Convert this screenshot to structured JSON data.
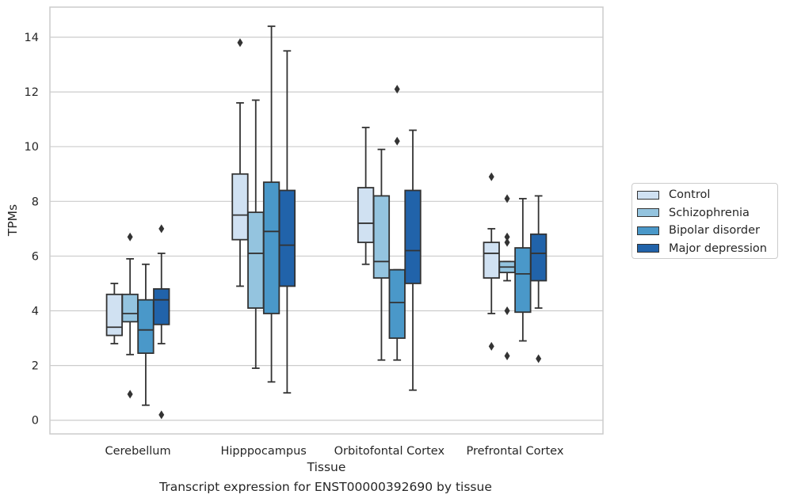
{
  "caption": "Transcript expression for ENST00000392690 by tissue",
  "chart_data": {
    "type": "box",
    "xlabel": "Tissue",
    "ylabel": "TPMs",
    "ylim": [
      -0.5,
      15.1
    ],
    "yticks": [
      0,
      2,
      4,
      6,
      8,
      10,
      12,
      14
    ],
    "grid": true,
    "legend_position": "right",
    "categories": [
      "Cerebellum",
      "Hipppocampus",
      "Orbitofontal Cortex",
      "Prefrontal Cortex"
    ],
    "series": [
      {
        "name": "Control",
        "color": "#d0e1f2",
        "boxes": [
          {
            "whislo": 2.8,
            "q1": 3.1,
            "med": 3.4,
            "q3": 4.6,
            "whishi": 5.0,
            "fliers": []
          },
          {
            "whislo": 4.9,
            "q1": 6.6,
            "med": 7.5,
            "q3": 9.0,
            "whishi": 11.6,
            "fliers": [
              13.8
            ]
          },
          {
            "whislo": 5.7,
            "q1": 6.5,
            "med": 7.2,
            "q3": 8.5,
            "whishi": 10.7,
            "fliers": []
          },
          {
            "whislo": 3.9,
            "q1": 5.2,
            "med": 6.1,
            "q3": 6.5,
            "whishi": 7.0,
            "fliers": [
              8.9,
              2.7
            ]
          }
        ]
      },
      {
        "name": "Schizophrenia",
        "color": "#94c4df",
        "boxes": [
          {
            "whislo": 2.4,
            "q1": 3.6,
            "med": 3.9,
            "q3": 4.6,
            "whishi": 5.9,
            "fliers": [
              6.7,
              0.95
            ]
          },
          {
            "whislo": 1.9,
            "q1": 4.1,
            "med": 6.1,
            "q3": 7.6,
            "whishi": 11.7,
            "fliers": []
          },
          {
            "whislo": 2.2,
            "q1": 5.2,
            "med": 5.8,
            "q3": 8.2,
            "whishi": 9.9,
            "fliers": []
          },
          {
            "whislo": 5.1,
            "q1": 5.4,
            "med": 5.6,
            "q3": 5.8,
            "whishi": 5.8,
            "fliers": [
              8.1,
              6.7,
              6.5,
              4.0,
              2.35
            ]
          }
        ]
      },
      {
        "name": "Bipolar disorder",
        "color": "#4a98c9",
        "boxes": [
          {
            "whislo": 0.55,
            "q1": 2.45,
            "med": 3.3,
            "q3": 4.4,
            "whishi": 5.7,
            "fliers": []
          },
          {
            "whislo": 1.4,
            "q1": 3.9,
            "med": 6.9,
            "q3": 8.7,
            "whishi": 14.4,
            "fliers": []
          },
          {
            "whislo": 2.2,
            "q1": 3.0,
            "med": 4.3,
            "q3": 5.5,
            "whishi": 5.5,
            "fliers": [
              12.1,
              10.2
            ]
          },
          {
            "whislo": 2.9,
            "q1": 3.95,
            "med": 5.35,
            "q3": 6.3,
            "whishi": 8.1,
            "fliers": []
          }
        ]
      },
      {
        "name": "Major depression",
        "color": "#2163aa",
        "boxes": [
          {
            "whislo": 2.8,
            "q1": 3.5,
            "med": 4.4,
            "q3": 4.8,
            "whishi": 6.1,
            "fliers": [
              7.0,
              0.2
            ]
          },
          {
            "whislo": 1.0,
            "q1": 4.9,
            "med": 6.4,
            "q3": 8.4,
            "whishi": 13.5,
            "fliers": []
          },
          {
            "whislo": 1.1,
            "q1": 5.0,
            "med": 6.2,
            "q3": 8.4,
            "whishi": 10.6,
            "fliers": []
          },
          {
            "whislo": 4.1,
            "q1": 5.1,
            "med": 6.1,
            "q3": 6.8,
            "whishi": 8.2,
            "fliers": [
              2.25
            ]
          }
        ]
      }
    ]
  }
}
